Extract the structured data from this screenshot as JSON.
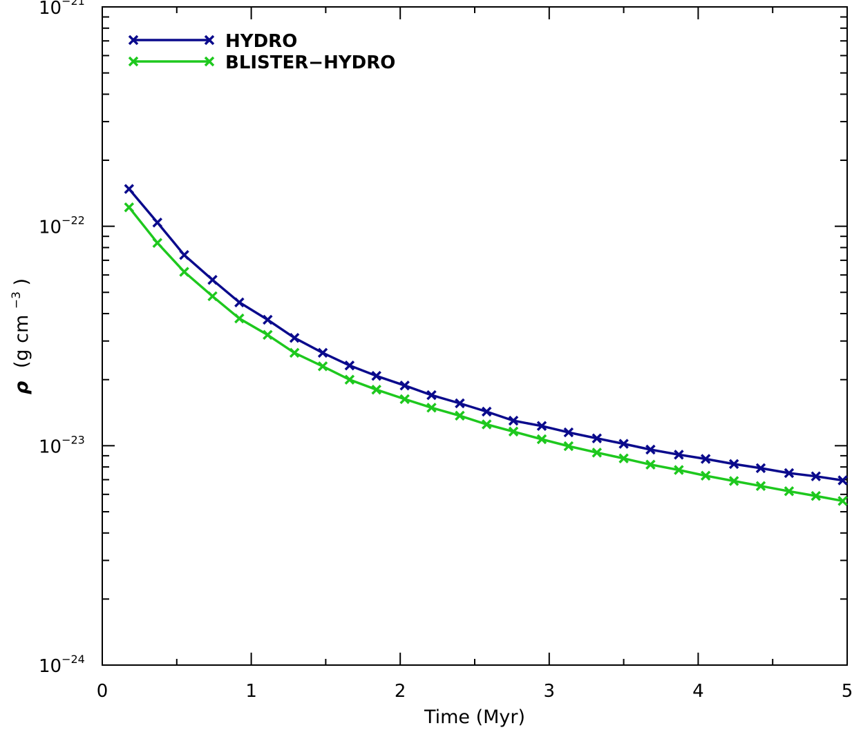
{
  "chart_data": {
    "type": "line",
    "xlabel": "Time (Myr)",
    "ylabel": {
      "symbol": "ρ",
      "unit_prefix": "(g cm",
      "unit_exponent": "−3",
      "unit_suffix": ")"
    },
    "xlim": [
      0,
      5
    ],
    "ylim": [
      1e-24,
      1e-21
    ],
    "yscale": "log",
    "x_ticks": [
      "0",
      "1",
      "2",
      "3",
      "4",
      "5"
    ],
    "y_ticks": [
      {
        "base": "10",
        "exp": "−24"
      },
      {
        "base": "10",
        "exp": "−23"
      },
      {
        "base": "10",
        "exp": "−22"
      },
      {
        "base": "10",
        "exp": "−21"
      }
    ],
    "legend_position": "top-left",
    "x": [
      0.18,
      0.37,
      0.55,
      0.74,
      0.92,
      1.11,
      1.29,
      1.48,
      1.66,
      1.84,
      2.03,
      2.21,
      2.4,
      2.58,
      2.76,
      2.95,
      3.13,
      3.32,
      3.5,
      3.68,
      3.87,
      4.05,
      4.24,
      4.42,
      4.61,
      4.79,
      4.97
    ],
    "series": [
      {
        "name": "HYDRO",
        "color": "#0a0a8c",
        "marker": "x",
        "values": [
          1.48e-22,
          1.04e-22,
          7.4e-23,
          5.7e-23,
          4.5e-23,
          3.75e-23,
          3.1e-23,
          2.65e-23,
          2.32e-23,
          2.08e-23,
          1.88e-23,
          1.7e-23,
          1.56e-23,
          1.43e-23,
          1.3e-23,
          1.23e-23,
          1.15e-23,
          1.08e-23,
          1.02e-23,
          9.6e-24,
          9.1e-24,
          8.7e-24,
          8.25e-24,
          7.9e-24,
          7.5e-24,
          7.25e-24,
          6.95e-24
        ]
      },
      {
        "name": "BLISTER−HYDRO",
        "color": "#1ec81e",
        "marker": "x",
        "values": [
          1.22e-22,
          8.4e-23,
          6.2e-23,
          4.8e-23,
          3.8e-23,
          3.2e-23,
          2.65e-23,
          2.3e-23,
          2e-23,
          1.8e-23,
          1.63e-23,
          1.49e-23,
          1.37e-23,
          1.25e-23,
          1.16e-23,
          1.07e-23,
          9.95e-24,
          9.3e-24,
          8.75e-24,
          8.2e-24,
          7.75e-24,
          7.3e-24,
          6.9e-24,
          6.55e-24,
          6.2e-24,
          5.9e-24,
          5.6e-24
        ]
      }
    ]
  }
}
